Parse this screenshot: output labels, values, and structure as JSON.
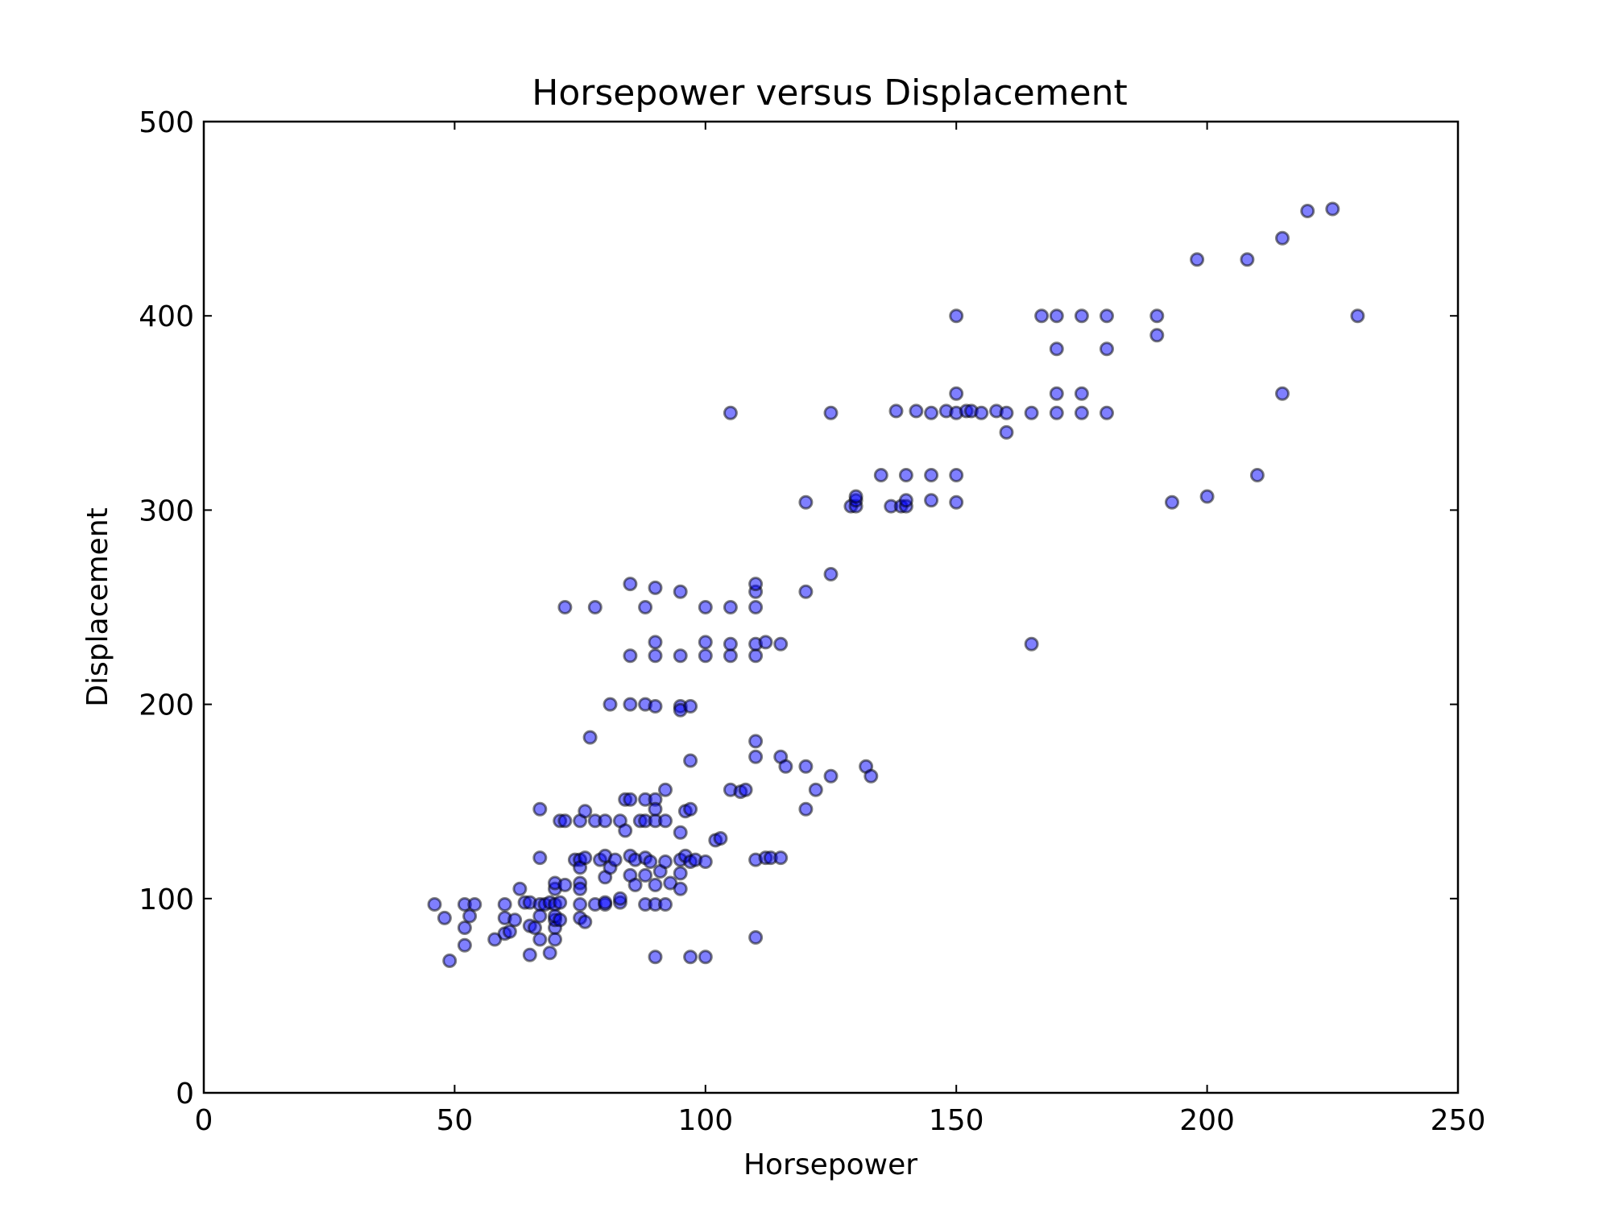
{
  "chart_data": {
    "type": "scatter",
    "title": "Horsepower versus Displacement",
    "xlabel": "Horsepower",
    "ylabel": "Displacement",
    "xlim": [
      0,
      250
    ],
    "ylim": [
      0,
      500
    ],
    "xticks": [
      0,
      50,
      100,
      150,
      200,
      250
    ],
    "yticks": [
      0,
      100,
      200,
      300,
      400,
      500
    ],
    "grid": false,
    "legend": "none",
    "marker_color": "#0000ff",
    "marker_opacity": 0.5,
    "points": [
      [
        46,
        97
      ],
      [
        48,
        90
      ],
      [
        49,
        68
      ],
      [
        52,
        85
      ],
      [
        52,
        76
      ],
      [
        52,
        97
      ],
      [
        53,
        91
      ],
      [
        54,
        97
      ],
      [
        58,
        79
      ],
      [
        60,
        97
      ],
      [
        60,
        90
      ],
      [
        60,
        82
      ],
      [
        61,
        83
      ],
      [
        62,
        89
      ],
      [
        63,
        105
      ],
      [
        64,
        98
      ],
      [
        65,
        98
      ],
      [
        65,
        86
      ],
      [
        65,
        71
      ],
      [
        66,
        85
      ],
      [
        67,
        97
      ],
      [
        67,
        91
      ],
      [
        67,
        79
      ],
      [
        67,
        146
      ],
      [
        67,
        121
      ],
      [
        68,
        97
      ],
      [
        69,
        98
      ],
      [
        69,
        72
      ],
      [
        70,
        97
      ],
      [
        70,
        85
      ],
      [
        70,
        89
      ],
      [
        70,
        105
      ],
      [
        70,
        108
      ],
      [
        70,
        79
      ],
      [
        70,
        91
      ],
      [
        71,
        98
      ],
      [
        71,
        140
      ],
      [
        71,
        89
      ],
      [
        72,
        140
      ],
      [
        72,
        250
      ],
      [
        72,
        107
      ],
      [
        74,
        120
      ],
      [
        75,
        120
      ],
      [
        75,
        108
      ],
      [
        75,
        116
      ],
      [
        75,
        90
      ],
      [
        75,
        97
      ],
      [
        75,
        140
      ],
      [
        75,
        105
      ],
      [
        76,
        145
      ],
      [
        76,
        88
      ],
      [
        76,
        121
      ],
      [
        77,
        183
      ],
      [
        78,
        97
      ],
      [
        78,
        140
      ],
      [
        78,
        250
      ],
      [
        79,
        120
      ],
      [
        80,
        97
      ],
      [
        80,
        122
      ],
      [
        80,
        111
      ],
      [
        80,
        140
      ],
      [
        80,
        98
      ],
      [
        81,
        200
      ],
      [
        81,
        116
      ],
      [
        82,
        120
      ],
      [
        83,
        98
      ],
      [
        83,
        100
      ],
      [
        83,
        140
      ],
      [
        84,
        135
      ],
      [
        84,
        151
      ],
      [
        85,
        122
      ],
      [
        85,
        112
      ],
      [
        85,
        151
      ],
      [
        85,
        225
      ],
      [
        85,
        262
      ],
      [
        85,
        200
      ],
      [
        86,
        120
      ],
      [
        86,
        107
      ],
      [
        87,
        140
      ],
      [
        88,
        97
      ],
      [
        88,
        121
      ],
      [
        88,
        112
      ],
      [
        88,
        140
      ],
      [
        88,
        151
      ],
      [
        88,
        200
      ],
      [
        88,
        250
      ],
      [
        89,
        119
      ],
      [
        90,
        151
      ],
      [
        90,
        225
      ],
      [
        90,
        232
      ],
      [
        90,
        107
      ],
      [
        90,
        140
      ],
      [
        90,
        199
      ],
      [
        90,
        70
      ],
      [
        90,
        97
      ],
      [
        90,
        260
      ],
      [
        90,
        146
      ],
      [
        91,
        114
      ],
      [
        92,
        97
      ],
      [
        92,
        119
      ],
      [
        92,
        140
      ],
      [
        92,
        156
      ],
      [
        93,
        108
      ],
      [
        95,
        134
      ],
      [
        95,
        113
      ],
      [
        95,
        120
      ],
      [
        95,
        199
      ],
      [
        95,
        225
      ],
      [
        95,
        258
      ],
      [
        95,
        197
      ],
      [
        95,
        105
      ],
      [
        96,
        122
      ],
      [
        96,
        145
      ],
      [
        97,
        119
      ],
      [
        97,
        171
      ],
      [
        97,
        199
      ],
      [
        97,
        70
      ],
      [
        97,
        146
      ],
      [
        98,
        120
      ],
      [
        100,
        119
      ],
      [
        100,
        225
      ],
      [
        100,
        232
      ],
      [
        100,
        250
      ],
      [
        100,
        70
      ],
      [
        102,
        130
      ],
      [
        103,
        131
      ],
      [
        105,
        225
      ],
      [
        105,
        231
      ],
      [
        105,
        250
      ],
      [
        105,
        156
      ],
      [
        105,
        350
      ],
      [
        107,
        155
      ],
      [
        108,
        156
      ],
      [
        110,
        120
      ],
      [
        110,
        225
      ],
      [
        110,
        231
      ],
      [
        110,
        250
      ],
      [
        110,
        258
      ],
      [
        110,
        262
      ],
      [
        110,
        173
      ],
      [
        110,
        181
      ],
      [
        110,
        80
      ],
      [
        112,
        121
      ],
      [
        112,
        232
      ],
      [
        113,
        121
      ],
      [
        115,
        121
      ],
      [
        115,
        173
      ],
      [
        115,
        231
      ],
      [
        116,
        168
      ],
      [
        120,
        258
      ],
      [
        120,
        146
      ],
      [
        120,
        168
      ],
      [
        120,
        304
      ],
      [
        122,
        156
      ],
      [
        125,
        163
      ],
      [
        125,
        267
      ],
      [
        125,
        350
      ],
      [
        129,
        302
      ],
      [
        130,
        302
      ],
      [
        130,
        305
      ],
      [
        130,
        307
      ],
      [
        132,
        168
      ],
      [
        133,
        163
      ],
      [
        135,
        318
      ],
      [
        137,
        302
      ],
      [
        138,
        351
      ],
      [
        139,
        302
      ],
      [
        140,
        302
      ],
      [
        140,
        305
      ],
      [
        140,
        318
      ],
      [
        142,
        351
      ],
      [
        145,
        305
      ],
      [
        145,
        318
      ],
      [
        145,
        350
      ],
      [
        148,
        351
      ],
      [
        150,
        304
      ],
      [
        150,
        318
      ],
      [
        150,
        350
      ],
      [
        150,
        360
      ],
      [
        150,
        400
      ],
      [
        152,
        351
      ],
      [
        153,
        351
      ],
      [
        155,
        350
      ],
      [
        158,
        351
      ],
      [
        160,
        350
      ],
      [
        160,
        340
      ],
      [
        165,
        350
      ],
      [
        165,
        231
      ],
      [
        167,
        400
      ],
      [
        170,
        350
      ],
      [
        170,
        360
      ],
      [
        170,
        383
      ],
      [
        170,
        400
      ],
      [
        175,
        350
      ],
      [
        175,
        360
      ],
      [
        175,
        400
      ],
      [
        180,
        350
      ],
      [
        180,
        383
      ],
      [
        180,
        400
      ],
      [
        190,
        390
      ],
      [
        190,
        400
      ],
      [
        193,
        304
      ],
      [
        198,
        429
      ],
      [
        200,
        307
      ],
      [
        208,
        429
      ],
      [
        210,
        318
      ],
      [
        215,
        360
      ],
      [
        215,
        440
      ],
      [
        220,
        454
      ],
      [
        225,
        455
      ],
      [
        230,
        400
      ]
    ]
  }
}
